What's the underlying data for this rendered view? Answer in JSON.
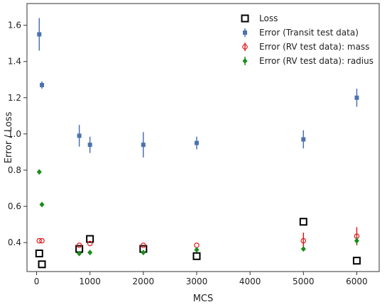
{
  "chart_data": {
    "type": "scatter",
    "xlabel": "MCS",
    "ylabel": "Error / Loss",
    "xlim": [
      -180,
      6420
    ],
    "ylim": [
      0.24,
      1.72
    ],
    "xticks": [
      0,
      1000,
      2000,
      3000,
      4000,
      5000,
      6000
    ],
    "yticks": [
      0.4,
      0.6,
      0.8,
      1.0,
      1.2,
      1.4,
      1.6
    ],
    "xtick_labels": [
      "0",
      "1000",
      "2000",
      "3000",
      "4000",
      "5000",
      "6000"
    ],
    "ytick_labels": [
      "0.4",
      "0.6",
      "0.8",
      "1.0",
      "1.2",
      "1.4",
      "1.6"
    ],
    "grid": false,
    "legend_position": "top-right",
    "series": [
      {
        "name": "Loss",
        "marker": "open-square",
        "color": "#000000",
        "x": [
          50,
          100,
          800,
          1000,
          2000,
          3000,
          5000,
          6000
        ],
        "y": [
          0.34,
          0.28,
          0.365,
          0.42,
          0.365,
          0.325,
          0.515,
          0.3
        ]
      },
      {
        "name": "Error (Transit test data)",
        "marker": "filled-square",
        "color": "#4c72b0",
        "x": [
          50,
          100,
          800,
          1000,
          2000,
          3000,
          5000,
          6000
        ],
        "y": [
          1.55,
          1.27,
          0.99,
          0.94,
          0.94,
          0.95,
          0.97,
          1.2
        ],
        "err": [
          0.09,
          0.02,
          0.06,
          0.045,
          0.07,
          0.035,
          0.05,
          0.05
        ]
      },
      {
        "name": "Error (RV test data): mass",
        "marker": "open-circle",
        "color": "#e41a1c",
        "x": [
          50,
          100,
          800,
          1000,
          2000,
          3000,
          5000,
          6000
        ],
        "y": [
          0.41,
          0.41,
          0.385,
          0.395,
          0.385,
          0.385,
          0.41,
          0.435
        ],
        "err": [
          0.0,
          0.0,
          0.0,
          0.0,
          0.0,
          0.0,
          0.045,
          0.05
        ]
      },
      {
        "name": "Error (RV test data): radius",
        "marker": "filled-diamond",
        "color": "#1a8c1a",
        "x": [
          50,
          100,
          800,
          1000,
          2000,
          3000,
          5000,
          6000
        ],
        "y": [
          0.79,
          0.61,
          0.34,
          0.345,
          0.345,
          0.36,
          0.365,
          0.41
        ],
        "err": [
          0.0,
          0.0,
          0.0,
          0.0,
          0.0,
          0.0,
          0.0,
          0.02
        ]
      }
    ]
  }
}
